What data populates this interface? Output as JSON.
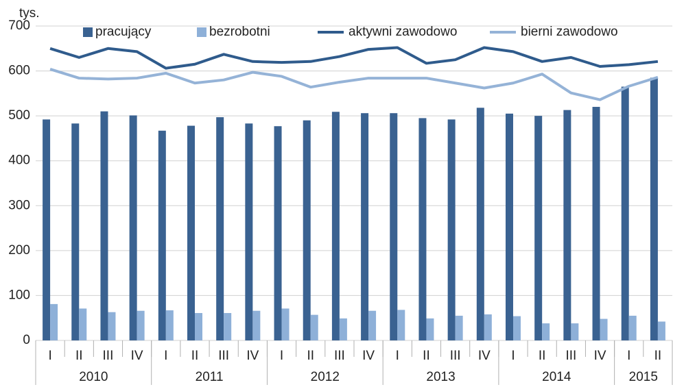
{
  "chart_data": {
    "type": "bar_line",
    "unit_label": "tys.",
    "categories": [
      "I",
      "II",
      "III",
      "IV",
      "I",
      "II",
      "III",
      "IV",
      "I",
      "II",
      "III",
      "IV",
      "I",
      "II",
      "III",
      "IV",
      "I",
      "II",
      "III",
      "IV",
      "I",
      "II"
    ],
    "groups": [
      {
        "label": "2010",
        "count": 4
      },
      {
        "label": "2011",
        "count": 4
      },
      {
        "label": "2012",
        "count": 4
      },
      {
        "label": "2013",
        "count": 4
      },
      {
        "label": "2014",
        "count": 4
      },
      {
        "label": "2015",
        "count": 2
      }
    ],
    "series": [
      {
        "name": "pracujący",
        "kind": "bar",
        "color": "#3a6291",
        "values": [
          492,
          483,
          510,
          501,
          467,
          478,
          497,
          483,
          477,
          490,
          509,
          506,
          506,
          495,
          492,
          518,
          505,
          500,
          513,
          520,
          565,
          585
        ]
      },
      {
        "name": "bezrobotni",
        "kind": "bar",
        "color": "#8eb0d8",
        "values": [
          81,
          71,
          63,
          66,
          67,
          61,
          61,
          66,
          71,
          57,
          49,
          66,
          68,
          49,
          55,
          58,
          54,
          38,
          38,
          48,
          55,
          42
        ]
      },
      {
        "name": "aktywni zawodowo",
        "kind": "line",
        "color": "#2f5b8c",
        "values": [
          650,
          630,
          650,
          643,
          606,
          615,
          637,
          621,
          619,
          621,
          632,
          648,
          652,
          617,
          625,
          652,
          643,
          621,
          630,
          610,
          614,
          621
        ]
      },
      {
        "name": "bierni zawodowo",
        "kind": "line",
        "color": "#95b3d7",
        "values": [
          604,
          584,
          582,
          584,
          595,
          573,
          580,
          597,
          588,
          564,
          575,
          584,
          584,
          584,
          573,
          562,
          573,
          593,
          551,
          536,
          566,
          586
        ]
      }
    ],
    "ylim": [
      0,
      700
    ],
    "yticks": [
      0,
      100,
      200,
      300,
      400,
      500,
      600,
      700
    ],
    "grid": true
  }
}
